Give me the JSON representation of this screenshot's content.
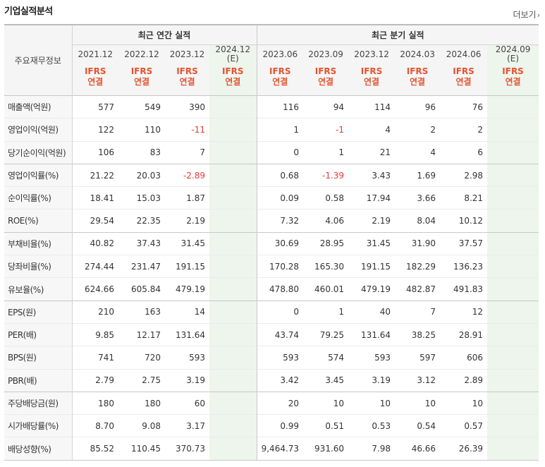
{
  "section_title": "기업실적분석",
  "more_label": "더보기",
  "more_arrow": "›",
  "table": {
    "corner_label": "주요재무정보",
    "group_annual": "최근 연간 실적",
    "group_quarter": "최근 분기 실적",
    "annual_periods": [
      "2021.12",
      "2022.12",
      "2023.12",
      "2024.12"
    ],
    "annual_est": "(E)",
    "quarter_periods": [
      "2023.06",
      "2023.09",
      "2023.12",
      "2024.03",
      "2024.06",
      "2024.09"
    ],
    "quarter_est": "(E)",
    "ifrs": "IFRS",
    "consolidated": "연결",
    "colors": {
      "ifrs": "#e5532e",
      "estimate_bg": "#eef5ec",
      "estimate_text": "#3f8f4a",
      "negative": "#e53935"
    },
    "rows": [
      {
        "label": "매출액(억원)",
        "values": [
          "577",
          "549",
          "390",
          "",
          "116",
          "94",
          "114",
          "96",
          "76",
          ""
        ]
      },
      {
        "label": "영업이익(억원)",
        "values": [
          "122",
          "110",
          "-11",
          "",
          "1",
          "-1",
          "4",
          "2",
          "2",
          ""
        ]
      },
      {
        "label": "당기순이익(억원)",
        "values": [
          "106",
          "83",
          "7",
          "",
          "0",
          "1",
          "21",
          "4",
          "6",
          ""
        ]
      },
      {
        "label": "영업이익률(%)",
        "values": [
          "21.22",
          "20.03",
          "-2.89",
          "",
          "0.68",
          "-1.39",
          "3.43",
          "1.69",
          "2.98",
          ""
        ]
      },
      {
        "label": "순이익률(%)",
        "values": [
          "18.41",
          "15.03",
          "1.87",
          "",
          "0.09",
          "0.58",
          "17.94",
          "3.66",
          "8.21",
          ""
        ]
      },
      {
        "label": "ROE(%)",
        "values": [
          "29.54",
          "22.35",
          "2.19",
          "",
          "7.32",
          "4.06",
          "2.19",
          "8.04",
          "10.12",
          ""
        ]
      },
      {
        "label": "부채비율(%)",
        "values": [
          "40.82",
          "37.43",
          "31.45",
          "",
          "30.69",
          "28.95",
          "31.45",
          "31.90",
          "37.57",
          ""
        ]
      },
      {
        "label": "당좌비율(%)",
        "values": [
          "274.44",
          "231.47",
          "191.15",
          "",
          "170.28",
          "165.30",
          "191.15",
          "182.29",
          "136.23",
          ""
        ]
      },
      {
        "label": "유보율(%)",
        "values": [
          "624.66",
          "605.84",
          "479.19",
          "",
          "478.80",
          "460.01",
          "479.19",
          "482.87",
          "491.83",
          ""
        ]
      },
      {
        "label": "EPS(원)",
        "values": [
          "210",
          "163",
          "14",
          "",
          "0",
          "1",
          "40",
          "7",
          "12",
          ""
        ]
      },
      {
        "label": "PER(배)",
        "values": [
          "9.85",
          "12.17",
          "131.64",
          "",
          "43.74",
          "79.25",
          "131.64",
          "38.25",
          "28.91",
          ""
        ]
      },
      {
        "label": "BPS(원)",
        "values": [
          "741",
          "720",
          "593",
          "",
          "593",
          "574",
          "593",
          "597",
          "606",
          ""
        ]
      },
      {
        "label": "PBR(배)",
        "values": [
          "2.79",
          "2.75",
          "3.19",
          "",
          "3.42",
          "3.45",
          "3.19",
          "3.12",
          "2.89",
          ""
        ]
      },
      {
        "label": "주당배당금(원)",
        "values": [
          "180",
          "180",
          "60",
          "",
          "20",
          "10",
          "10",
          "10",
          "10",
          ""
        ]
      },
      {
        "label": "시가배당률(%)",
        "values": [
          "8.70",
          "9.08",
          "3.17",
          "",
          "0.99",
          "0.51",
          "0.53",
          "0.54",
          "0.57",
          ""
        ]
      },
      {
        "label": "배당성향(%)",
        "values": [
          "85.52",
          "110.45",
          "370.73",
          "",
          "9,464.73",
          "931.60",
          "7.98",
          "46.66",
          "26.39",
          ""
        ]
      }
    ]
  }
}
